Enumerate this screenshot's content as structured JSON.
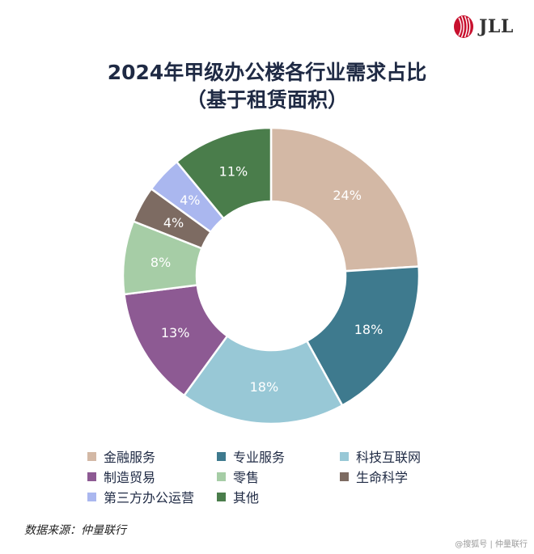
{
  "brand": {
    "name": "JLL",
    "color": "#c8102e"
  },
  "title_line1": "2024年甲级办公楼各行业需求占比",
  "title_line2": "（基于租赁面积）",
  "chart_data": {
    "type": "pie",
    "donut": true,
    "title": "2024年甲级办公楼各行业需求占比（基于租赁面积）",
    "legend_position": "bottom",
    "slices": [
      {
        "label": "金融服务",
        "value": 24,
        "display": "24%",
        "color": "#d3b8a5"
      },
      {
        "label": "专业服务",
        "value": 18,
        "display": "18%",
        "color": "#3e7a8e"
      },
      {
        "label": "科技互联网",
        "value": 18,
        "display": "18%",
        "color": "#98c8d6"
      },
      {
        "label": "制造贸易",
        "value": 13,
        "display": "13%",
        "color": "#8d5a93"
      },
      {
        "label": "零售",
        "value": 8,
        "display": "8%",
        "color": "#a6cda6"
      },
      {
        "label": "生命科学",
        "value": 4,
        "display": "4%",
        "color": "#7d6b62"
      },
      {
        "label": "第三方办公运营",
        "value": 4,
        "display": "4%",
        "color": "#aab7ef"
      },
      {
        "label": "其他",
        "value": 11,
        "display": "11%",
        "color": "#4a7d4b"
      }
    ]
  },
  "source": "数据来源：仲量联行",
  "watermark": "@搜狐号 | 仲量联行"
}
